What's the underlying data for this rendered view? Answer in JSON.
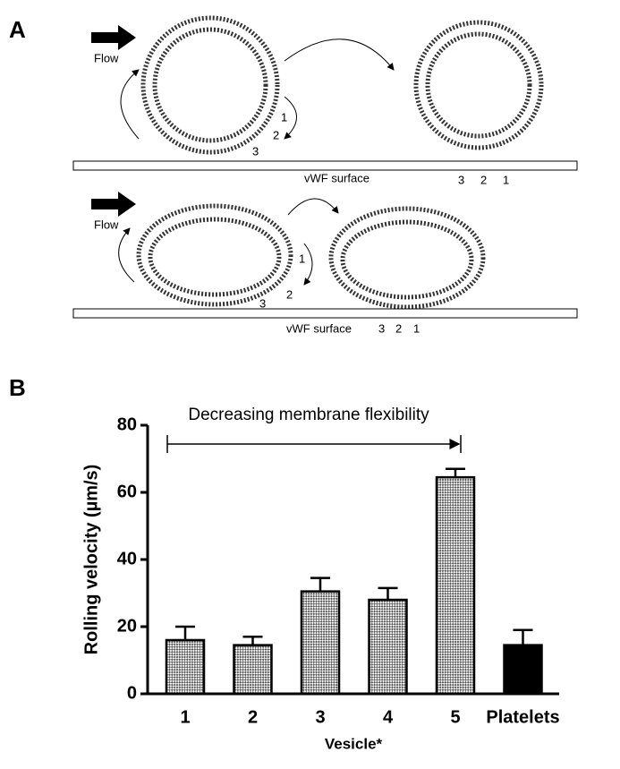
{
  "panel_labels": [
    "A",
    "B"
  ],
  "diagram": {
    "rows": [
      {
        "flow": "Flow",
        "surface": "vWF surface",
        "left_sites": [
          "1",
          "2",
          "3"
        ],
        "right_sites": [
          "3",
          "2",
          "1"
        ]
      },
      {
        "flow": "Flow",
        "surface": "vWF surface",
        "left_sites": [
          "1",
          "2",
          "3"
        ],
        "right_sites": [
          "3",
          "2",
          "1"
        ]
      }
    ]
  },
  "chart_data": {
    "type": "bar",
    "annotation": "Decreasing membrane flexibility",
    "ylabel": "Rolling velocity (µm/s)",
    "xlabel": "Vesicle*",
    "categories": [
      "1",
      "2",
      "3",
      "4",
      "5",
      "Platelets"
    ],
    "values": [
      16,
      14.5,
      30.5,
      28,
      64.5,
      14.5
    ],
    "errors": [
      4,
      2.5,
      4,
      3.5,
      2.5,
      4.5
    ],
    "colors": [
      "#555555",
      "#555555",
      "#555555",
      "#555555",
      "#555555",
      "#000000"
    ],
    "hatched": [
      true,
      true,
      true,
      true,
      true,
      false
    ],
    "ylim": [
      0,
      80
    ],
    "yticks": [
      0,
      20,
      40,
      60,
      80
    ],
    "grid": false
  }
}
